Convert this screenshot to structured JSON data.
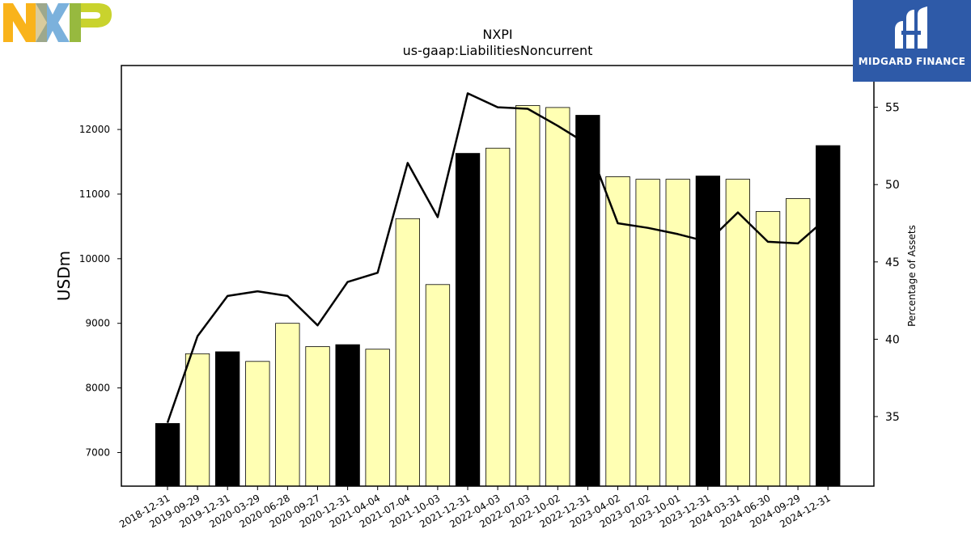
{
  "logos": {
    "left_letters": [
      "N",
      "X",
      "P"
    ],
    "right_text": "MIDGARD FINANCE"
  },
  "colors": {
    "annual_bar": "#000000",
    "quarter_bar": "#ffffb3",
    "line": "#000000",
    "nxp_orange": "#f9b31b",
    "nxp_blue": "#7bb1dc",
    "nxp_green": "#c9d32d",
    "midgard_bg": "#2e5aa8"
  },
  "chart_data": {
    "type": "bar",
    "title": "NXPI",
    "subtitle": "us-gaap:LiabilitiesNoncurrent",
    "ylabel": "USDm",
    "y2label": "Percentage of Assets",
    "categories": [
      "2018-12-31",
      "2019-09-29",
      "2019-12-31",
      "2020-03-29",
      "2020-06-28",
      "2020-09-27",
      "2020-12-31",
      "2021-04-04",
      "2021-07-04",
      "2021-10-03",
      "2021-12-31",
      "2022-04-03",
      "2022-07-03",
      "2022-10-02",
      "2022-12-31",
      "2023-04-02",
      "2023-07-02",
      "2023-10-01",
      "2023-12-31",
      "2024-03-31",
      "2024-06-30",
      "2024-09-29",
      "2024-12-31"
    ],
    "annual": [
      true,
      false,
      true,
      false,
      false,
      false,
      true,
      false,
      false,
      false,
      true,
      false,
      false,
      false,
      true,
      false,
      false,
      false,
      true,
      false,
      false,
      false,
      true
    ],
    "series": [
      {
        "axis": "left",
        "type": "bar",
        "values": [
          7450,
          8530,
          8560,
          8410,
          9000,
          8640,
          8670,
          8600,
          10620,
          9600,
          11630,
          11710,
          12370,
          12340,
          12220,
          11270,
          11230,
          11230,
          11280,
          11230,
          10730,
          10930,
          11750
        ]
      },
      {
        "axis": "right",
        "type": "line",
        "values": [
          34.6,
          40.2,
          42.8,
          43.1,
          42.8,
          40.9,
          43.7,
          44.3,
          51.4,
          47.9,
          55.9,
          55.0,
          54.9,
          53.8,
          52.6,
          47.5,
          47.2,
          46.8,
          46.3,
          48.2,
          46.3,
          46.2,
          47.9
        ]
      }
    ],
    "ylim": [
      6480,
      12990
    ],
    "y2lim": [
      30.5,
      57.7
    ],
    "yticks": [
      7000,
      8000,
      9000,
      10000,
      11000,
      12000
    ],
    "y2ticks": [
      35,
      40,
      45,
      50,
      55
    ],
    "grid": false
  }
}
